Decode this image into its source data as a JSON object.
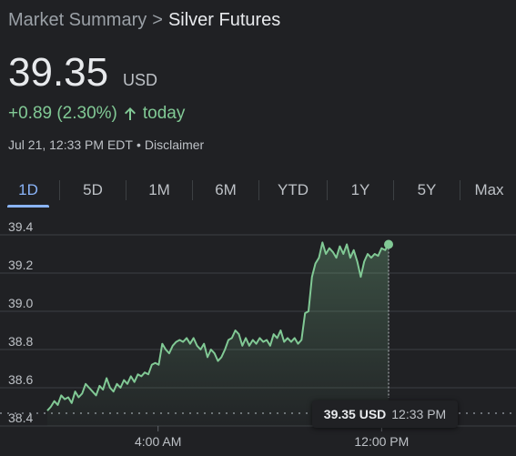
{
  "breadcrumb": {
    "parent": "Market Summary",
    "separator": ">",
    "current": "Silver Futures"
  },
  "quote": {
    "price": "39.35",
    "currency": "USD",
    "change": "+0.89 (2.30%)",
    "period": "today",
    "timestamp": "Jul 21, 12:33 PM EDT",
    "meta_separator": "•",
    "disclaimer": "Disclaimer"
  },
  "colors": {
    "accent": "#8ab4f8",
    "positive": "#81c995",
    "background": "#202124"
  },
  "tabs": [
    {
      "label": "1D",
      "active": true
    },
    {
      "label": "5D",
      "active": false
    },
    {
      "label": "1M",
      "active": false
    },
    {
      "label": "6M",
      "active": false
    },
    {
      "label": "YTD",
      "active": false
    },
    {
      "label": "1Y",
      "active": false
    },
    {
      "label": "5Y",
      "active": false
    },
    {
      "label": "Max",
      "active": false
    }
  ],
  "tooltip": {
    "price": "39.35 USD",
    "time": "12:33 PM"
  },
  "chart_data": {
    "type": "line",
    "ylim": [
      38.4,
      39.4
    ],
    "yticks": [
      "39.4",
      "39.2",
      "39.0",
      "38.8",
      "38.6",
      "38.4"
    ],
    "xticks": [
      "4:00 AM",
      "12:00 PM"
    ],
    "grid": true,
    "previous_close_line": true,
    "x_unit": "session fraction",
    "series": [
      {
        "values": [
          [
            0.0,
            38.48
          ],
          [
            0.01,
            38.5
          ],
          [
            0.02,
            38.53
          ],
          [
            0.03,
            38.51
          ],
          [
            0.04,
            38.56
          ],
          [
            0.05,
            38.54
          ],
          [
            0.06,
            38.55
          ],
          [
            0.07,
            38.52
          ],
          [
            0.08,
            38.58
          ],
          [
            0.09,
            38.55
          ],
          [
            0.1,
            38.57
          ],
          [
            0.11,
            38.62
          ],
          [
            0.12,
            38.6
          ],
          [
            0.13,
            38.58
          ],
          [
            0.14,
            38.56
          ],
          [
            0.15,
            38.61
          ],
          [
            0.16,
            38.59
          ],
          [
            0.17,
            38.65
          ],
          [
            0.18,
            38.6
          ],
          [
            0.19,
            38.58
          ],
          [
            0.2,
            38.62
          ],
          [
            0.21,
            38.6
          ],
          [
            0.22,
            38.64
          ],
          [
            0.23,
            38.62
          ],
          [
            0.24,
            38.66
          ],
          [
            0.25,
            38.63
          ],
          [
            0.26,
            38.67
          ],
          [
            0.27,
            38.66
          ],
          [
            0.28,
            38.68
          ],
          [
            0.29,
            38.67
          ],
          [
            0.3,
            38.72
          ],
          [
            0.31,
            38.73
          ],
          [
            0.32,
            38.72
          ],
          [
            0.33,
            38.83
          ],
          [
            0.34,
            38.8
          ],
          [
            0.35,
            38.78
          ],
          [
            0.36,
            38.82
          ],
          [
            0.37,
            38.84
          ],
          [
            0.38,
            38.85
          ],
          [
            0.39,
            38.84
          ],
          [
            0.4,
            38.86
          ],
          [
            0.41,
            38.83
          ],
          [
            0.42,
            38.86
          ],
          [
            0.43,
            38.82
          ],
          [
            0.44,
            38.8
          ],
          [
            0.45,
            38.83
          ],
          [
            0.46,
            38.76
          ],
          [
            0.47,
            38.8
          ],
          [
            0.48,
            38.78
          ],
          [
            0.49,
            38.74
          ],
          [
            0.5,
            38.76
          ],
          [
            0.51,
            38.8
          ],
          [
            0.52,
            38.85
          ],
          [
            0.53,
            38.86
          ],
          [
            0.54,
            38.9
          ],
          [
            0.55,
            38.88
          ],
          [
            0.56,
            38.82
          ],
          [
            0.57,
            38.86
          ],
          [
            0.58,
            38.82
          ],
          [
            0.59,
            38.85
          ],
          [
            0.6,
            38.83
          ],
          [
            0.61,
            38.86
          ],
          [
            0.62,
            38.84
          ],
          [
            0.63,
            38.85
          ],
          [
            0.64,
            38.82
          ],
          [
            0.65,
            38.88
          ],
          [
            0.66,
            38.86
          ],
          [
            0.67,
            38.9
          ],
          [
            0.68,
            38.84
          ],
          [
            0.69,
            38.86
          ],
          [
            0.7,
            38.84
          ],
          [
            0.71,
            38.86
          ],
          [
            0.72,
            38.83
          ],
          [
            0.73,
            38.85
          ],
          [
            0.74,
            38.99
          ],
          [
            0.75,
            39.0
          ],
          [
            0.76,
            39.18
          ],
          [
            0.77,
            39.25
          ],
          [
            0.78,
            39.28
          ],
          [
            0.79,
            39.36
          ],
          [
            0.8,
            39.3
          ],
          [
            0.81,
            39.33
          ],
          [
            0.82,
            39.31
          ],
          [
            0.83,
            39.28
          ],
          [
            0.84,
            39.34
          ],
          [
            0.85,
            39.3
          ],
          [
            0.86,
            39.35
          ],
          [
            0.87,
            39.28
          ],
          [
            0.88,
            39.32
          ],
          [
            0.89,
            39.26
          ],
          [
            0.9,
            39.18
          ],
          [
            0.91,
            39.26
          ],
          [
            0.92,
            39.3
          ],
          [
            0.93,
            39.28
          ],
          [
            0.94,
            39.3
          ],
          [
            0.95,
            39.29
          ],
          [
            0.96,
            39.33
          ],
          [
            0.97,
            39.32
          ],
          [
            0.98,
            39.35
          ]
        ]
      }
    ]
  }
}
